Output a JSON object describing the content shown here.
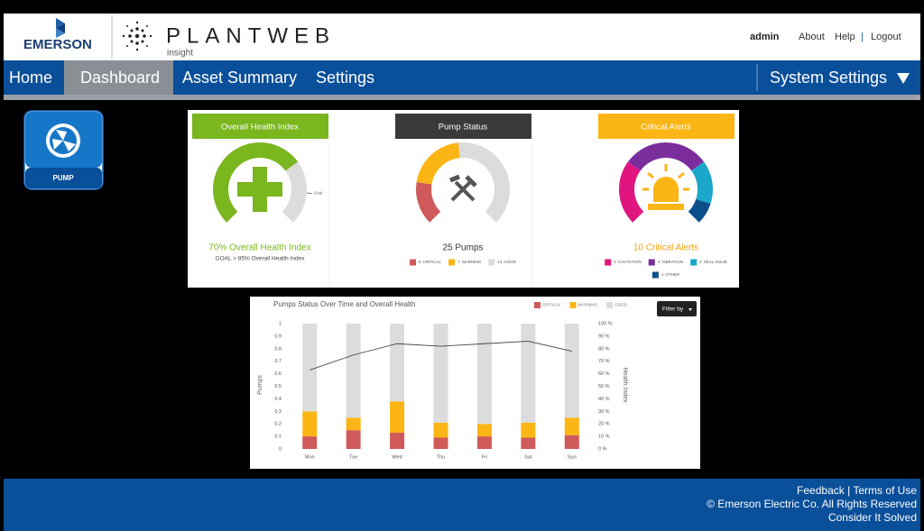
{
  "header": {
    "brand": "EMERSON",
    "product": "PLANTWEB",
    "product_sub": "insight",
    "user": "admin",
    "links": [
      "About",
      "Help",
      "Logout"
    ],
    "separator": "|"
  },
  "nav": {
    "items": [
      "Home",
      "Dashboard",
      "Asset Summary",
      "Settings"
    ],
    "active": 1,
    "system_settings": "System Settings"
  },
  "asset_tile": {
    "label": "PUMP"
  },
  "cards": [
    {
      "title": "Overall Health Index",
      "header_color": "#7ab61e",
      "type": "gauge",
      "value": 70,
      "max": 100,
      "color": "#7ab61e",
      "track_color": "#dcdcdc",
      "goal": 85,
      "goal_label": "Goal",
      "headline": "70% Overall Health Index",
      "headline_color": "#7ab61e",
      "subline": "GOAL > 85% Overall Health Index"
    },
    {
      "title": "Pump Status",
      "header_color": "#3a3a3a",
      "type": "segments",
      "segments": [
        {
          "name": "CRITICAL",
          "value": 5,
          "color": "#d05a5a"
        },
        {
          "name": "WARNING",
          "value": 7,
          "color": "#fbb515"
        },
        {
          "name": "GOOD",
          "value": 13,
          "color": "#dcdcdc"
        }
      ],
      "headline": "25 Pumps",
      "headline_color": "#333333"
    },
    {
      "title": "Critical Alerts",
      "header_color": "#fbb515",
      "type": "segments",
      "segments": [
        {
          "name": "CAVITATION",
          "value": 3,
          "color": "#e0157f"
        },
        {
          "name": "VIBRATION",
          "value": 4,
          "color": "#7b2d9c"
        },
        {
          "name": "SEAL ISSUE",
          "value": 2,
          "color": "#1aa7c9"
        },
        {
          "name": "OTHER",
          "value": 1,
          "color": "#0d4f8b"
        }
      ],
      "headline": "10 Critical Alerts",
      "headline_color": "#f5a40f"
    }
  ],
  "chart_data": {
    "type": "bar",
    "stacked": true,
    "title": "Pumps Status Over Time and Overall Health",
    "filter_button": "Filter by",
    "categories": [
      "Mon",
      "Tue",
      "Wed",
      "Thu",
      "Fri",
      "Sat",
      "Sun"
    ],
    "series": [
      {
        "name": "CRITICAL",
        "color": "#d05a5a",
        "values": [
          0.1,
          0.15,
          0.13,
          0.09,
          0.1,
          0.09,
          0.11
        ]
      },
      {
        "name": "WARNING",
        "color": "#fbb515",
        "values": [
          0.2,
          0.1,
          0.25,
          0.12,
          0.1,
          0.12,
          0.14
        ]
      },
      {
        "name": "GOOD",
        "color": "#dcdcdc",
        "values": [
          0.7,
          0.75,
          0.62,
          0.79,
          0.8,
          0.79,
          0.75
        ]
      },
      {
        "type": "line",
        "axis": "y2",
        "color": "#444444",
        "values": [
          63,
          75,
          84,
          82,
          84,
          86,
          78
        ]
      }
    ],
    "ylim": [
      0,
      1
    ],
    "yticks": [
      0,
      0.1,
      0.2,
      0.3,
      0.4,
      0.5,
      0.6,
      0.7,
      0.8,
      0.9,
      1
    ],
    "y2lim": [
      0,
      100
    ],
    "y2ticks": [
      {
        "value": 0,
        "label": "0 %"
      },
      {
        "value": 10,
        "label": "10 %"
      },
      {
        "value": 20,
        "label": "20 %"
      },
      {
        "value": 30,
        "label": "30 %"
      },
      {
        "value": 40,
        "label": "40 %"
      },
      {
        "value": 50,
        "label": "50 %"
      },
      {
        "value": 60,
        "label": "60 %"
      },
      {
        "value": 70,
        "label": "70 %"
      },
      {
        "value": 80,
        "label": "80 %"
      },
      {
        "value": 90,
        "label": "90 %"
      },
      {
        "value": 100,
        "label": "100 %"
      }
    ],
    "ylabel": "Pumps",
    "y2label": "Health Index",
    "legend": "top-right"
  },
  "footer": {
    "lines": [
      "Feedback | Terms of Use",
      "© Emerson Electric Co. All Rights Reserved",
      "Consider It Solved"
    ]
  }
}
